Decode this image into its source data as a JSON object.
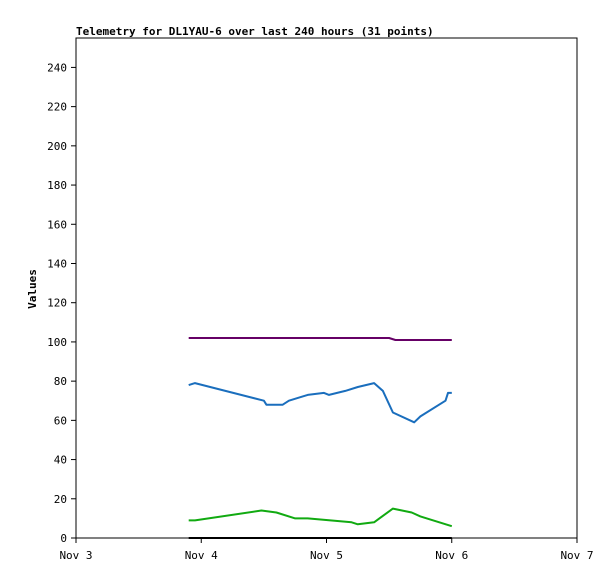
{
  "chart_data": {
    "type": "line",
    "title": "Telemetry for DL1YAU-6 over last 240 hours (31 points)",
    "xlabel": "",
    "ylabel": "Values",
    "x_ticks": [
      "Nov 3",
      "Nov 4",
      "Nov 5",
      "Nov 6",
      "Nov 7"
    ],
    "x_tick_values": [
      0,
      1,
      2,
      3,
      4
    ],
    "xlim": [
      0,
      4
    ],
    "ylim": [
      0,
      255
    ],
    "y_ticks": [
      0,
      20,
      40,
      60,
      80,
      100,
      120,
      140,
      160,
      180,
      200,
      220,
      240
    ],
    "grid": false,
    "series": [
      {
        "color": "#660066",
        "points": [
          [
            0.9,
            102
          ],
          [
            1.5,
            102
          ],
          [
            2.0,
            102
          ],
          [
            2.5,
            102
          ],
          [
            2.55,
            101
          ],
          [
            3.0,
            101
          ]
        ]
      },
      {
        "color": "#1a6ebd",
        "points": [
          [
            0.9,
            78
          ],
          [
            0.95,
            79
          ],
          [
            1.5,
            70
          ],
          [
            1.52,
            68
          ],
          [
            1.65,
            68
          ],
          [
            1.7,
            70
          ],
          [
            1.8,
            72
          ],
          [
            1.85,
            73
          ],
          [
            1.98,
            74
          ],
          [
            2.02,
            73
          ],
          [
            2.15,
            75
          ],
          [
            2.25,
            77
          ],
          [
            2.38,
            79
          ],
          [
            2.45,
            75
          ],
          [
            2.53,
            64
          ],
          [
            2.7,
            59
          ],
          [
            2.75,
            62
          ],
          [
            2.95,
            70
          ],
          [
            2.97,
            74
          ],
          [
            3.0,
            74
          ]
        ]
      },
      {
        "color": "#11aa11",
        "points": [
          [
            0.9,
            9
          ],
          [
            0.95,
            9
          ],
          [
            1.48,
            14
          ],
          [
            1.6,
            13
          ],
          [
            1.75,
            10
          ],
          [
            1.85,
            10
          ],
          [
            2.2,
            8
          ],
          [
            2.25,
            7
          ],
          [
            2.38,
            8
          ],
          [
            2.53,
            15
          ],
          [
            2.68,
            13
          ],
          [
            2.75,
            11
          ],
          [
            3.0,
            6
          ]
        ]
      },
      {
        "color": "#000000",
        "points": [
          [
            0.9,
            0
          ],
          [
            3.0,
            0
          ]
        ]
      }
    ]
  }
}
